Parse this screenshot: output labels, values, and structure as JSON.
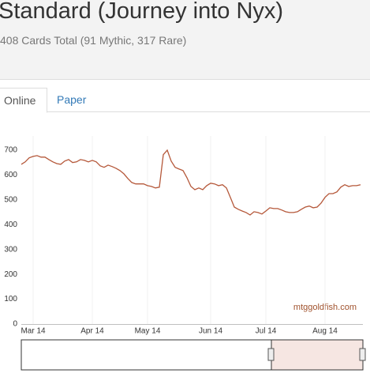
{
  "header": {
    "title": "Standard (Journey into Nyx)",
    "subtitle": "408 Cards Total (91 Mythic, 317 Rare)"
  },
  "tabs": [
    "Online",
    "Paper"
  ],
  "chart_data": {
    "type": "line",
    "watermark": "mtggoldfish.com",
    "categories": [
      null,
      null,
      null,
      "Mar 14",
      null,
      null,
      null,
      null,
      null,
      null,
      null,
      null,
      null,
      null,
      null,
      null,
      null,
      null,
      "Apr 14",
      null,
      null,
      null,
      null,
      null,
      null,
      null,
      null,
      null,
      null,
      null,
      null,
      null,
      "May 14",
      null,
      null,
      null,
      null,
      null,
      null,
      null,
      null,
      null,
      null,
      null,
      null,
      null,
      null,
      null,
      "Jun 14",
      null,
      null,
      null,
      null,
      null,
      null,
      null,
      null,
      null,
      null,
      null,
      null,
      null,
      "Jul 14",
      null,
      null,
      null,
      null,
      null,
      null,
      null,
      null,
      null,
      null,
      null,
      null,
      null,
      null,
      "Aug 14",
      null,
      null,
      null,
      null,
      null,
      null,
      null,
      null,
      null
    ],
    "values": [
      643,
      653,
      669,
      675,
      678,
      672,
      672,
      662,
      653,
      646,
      643,
      656,
      662,
      650,
      653,
      662,
      659,
      653,
      659,
      653,
      637,
      631,
      640,
      634,
      627,
      618,
      605,
      586,
      570,
      564,
      564,
      564,
      557,
      554,
      548,
      551,
      682,
      700,
      656,
      631,
      624,
      618,
      589,
      554,
      541,
      548,
      541,
      557,
      567,
      564,
      557,
      561,
      548,
      510,
      471,
      462,
      455,
      449,
      439,
      452,
      449,
      443,
      455,
      468,
      465,
      465,
      459,
      452,
      449,
      449,
      452,
      462,
      471,
      475,
      468,
      471,
      487,
      510,
      525,
      525,
      532,
      551,
      561,
      554,
      557,
      557,
      561
    ],
    "color": "#b5583a",
    "ylim": [
      0,
      700
    ],
    "yticks": [
      0,
      100,
      200,
      300,
      400,
      500,
      600,
      700
    ]
  }
}
